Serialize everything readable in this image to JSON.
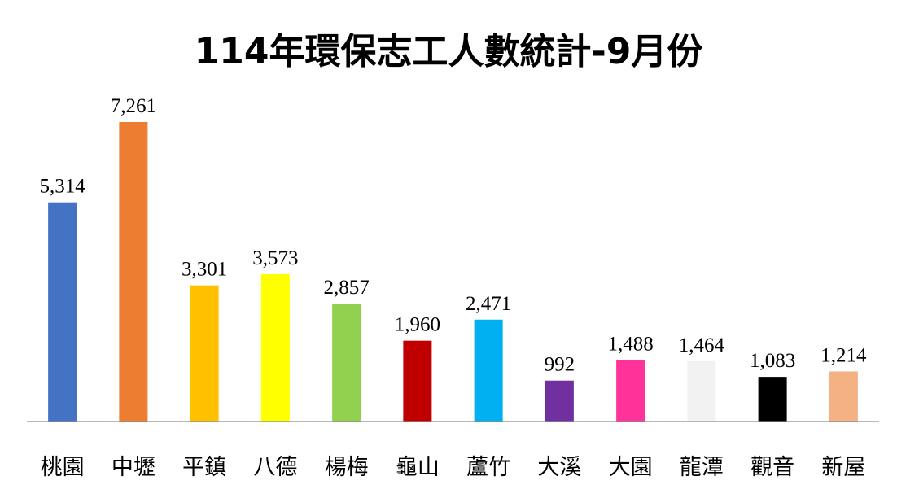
{
  "chart_data": {
    "type": "bar",
    "title": "114年環保志工人數統計-9月份",
    "xlabel": "",
    "ylabel": "",
    "ylim": [
      0,
      7800
    ],
    "grid": false,
    "legend": "none",
    "categories": [
      "桃園",
      "中壢",
      "平鎮",
      "八德",
      "楊梅",
      "龜山",
      "蘆竹",
      "大溪",
      "大園",
      "龍潭",
      "觀音",
      "新屋"
    ],
    "values": [
      5314,
      7261,
      3301,
      3573,
      2857,
      1960,
      2471,
      992,
      1488,
      1464,
      1083,
      1214
    ],
    "value_labels": [
      "5,314",
      "7,261",
      "3,301",
      "3,573",
      "2,857",
      "1,960",
      "2,471",
      "992",
      "1,488",
      "1,464",
      "1,083",
      "1,214"
    ],
    "colors": [
      "#4472C4",
      "#ED7D31",
      "#FFC000",
      "#FFFF00",
      "#92D050",
      "#C00000",
      "#00B0F0",
      "#7030A0",
      "#FF3399",
      "#F2F2F2",
      "#000000",
      "#F4B183"
    ]
  }
}
